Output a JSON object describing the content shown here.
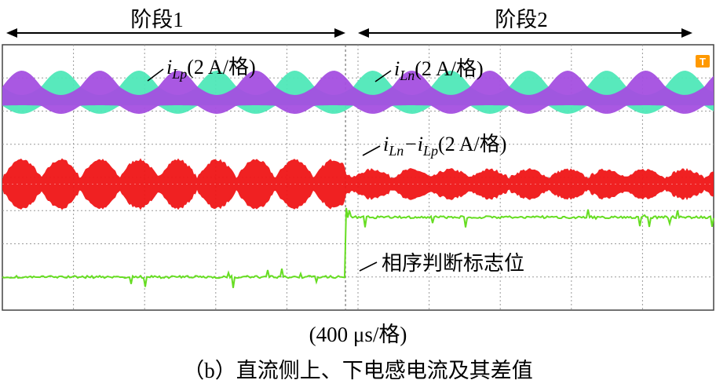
{
  "chart_data": {
    "type": "line",
    "stages": [
      {
        "name": "阶段1",
        "t_start_ms": 0,
        "t_end_ms": 4.4
      },
      {
        "name": "阶段2",
        "t_start_ms": 4.4,
        "t_end_ms": 9.12
      }
    ],
    "x_scale": "(400 μs/格)",
    "grid": {
      "divisions_x": 10,
      "divisions_y": 8,
      "visible": true
    },
    "series": [
      {
        "name": "iLp",
        "label_main": "i",
        "label_sub": "Lp",
        "label_tail": "(2 A/格)",
        "color": "#9b3fd6",
        "envelope_color": "#a44fe0",
        "ripple_period_ms": 1.0,
        "ripple_amp_div": 0.45
      },
      {
        "name": "iLn",
        "label_main": "i",
        "label_sub": "Ln",
        "label_tail": "(2 A/格)",
        "color": "#4fe8b8",
        "envelope_color": "#4fe8b8",
        "ripple_period_ms": 1.0,
        "ripple_amp_div": 0.45
      },
      {
        "name": "iLn-iLp",
        "label_main": "i",
        "label_sub": "Ln",
        "label_mid": "−i",
        "label_sub2": "Lp",
        "label_tail": "(2 A/格)",
        "color": "#ee1111",
        "envelope_color": "#f07a8e",
        "amp_stage1_div": 0.55,
        "amp_stage2_div": 0.25
      },
      {
        "name": "相序判断标志位",
        "label": "相序判断标志位",
        "color": "#66dd22",
        "level_stage1": 0,
        "level_stage2": 1
      }
    ],
    "marker": "T"
  },
  "text": {
    "x_unit": "(400 μs/格)",
    "caption": "（b）直流侧上、下电感电流及其差值"
  },
  "colors": {
    "grid": "#9a9a9a",
    "border": "#444444",
    "marker": "#ff9900"
  }
}
